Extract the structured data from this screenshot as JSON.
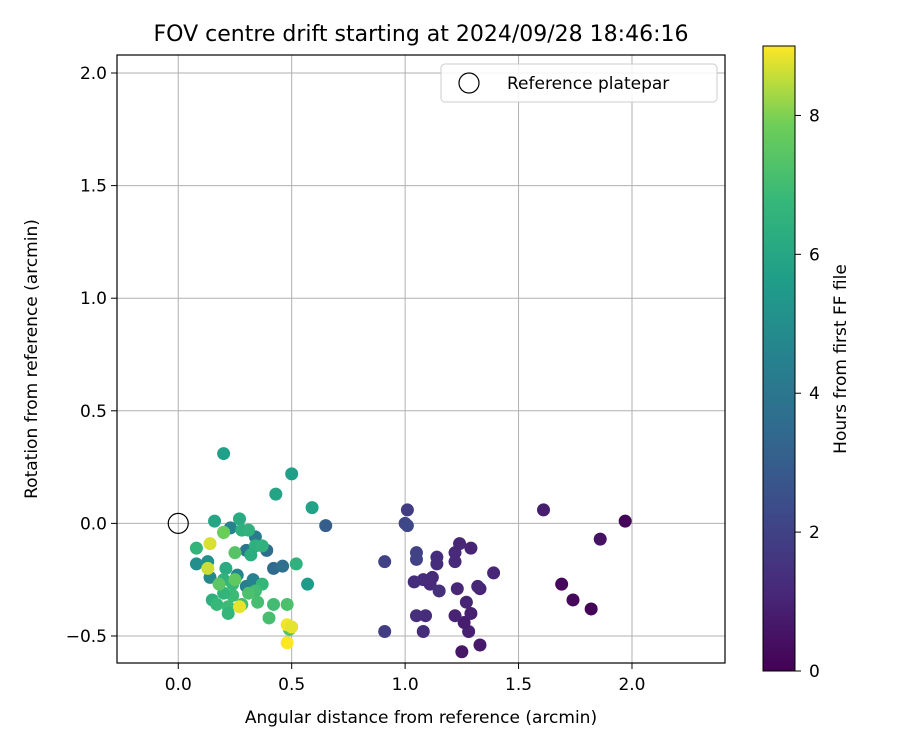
{
  "chart_data": {
    "type": "scatter",
    "title": "FOV centre drift starting at 2024/09/28 18:46:16",
    "xlabel": "Angular distance from reference (arcmin)",
    "ylabel": "Rotation from reference (arcmin)",
    "xlim": [
      -0.27,
      2.41
    ],
    "ylim": [
      -0.62,
      2.08
    ],
    "x_ticks": [
      0.0,
      0.5,
      1.0,
      1.5,
      2.0
    ],
    "x_tick_labels": [
      "0.0",
      "0.5",
      "1.0",
      "1.5",
      "2.0"
    ],
    "y_ticks": [
      -0.5,
      0.0,
      0.5,
      1.0,
      1.5,
      2.0
    ],
    "y_tick_labels": [
      "−0.5",
      "0.0",
      "0.5",
      "1.0",
      "1.5",
      "2.0"
    ],
    "grid": true,
    "legend": {
      "position": "top-right",
      "entries": [
        "Reference platepar"
      ]
    },
    "reference_point": {
      "x": 0.0,
      "y": 0.0
    },
    "colorbar": {
      "label": "Hours from first FF file",
      "colormap": "viridis",
      "range": [
        0,
        9
      ],
      "ticks": [
        0,
        2,
        4,
        6,
        8
      ],
      "tick_labels": [
        "0",
        "2",
        "4",
        "6",
        "8"
      ]
    },
    "points": [
      {
        "x": 1.97,
        "y": 0.01,
        "c": 0.1
      },
      {
        "x": 1.82,
        "y": -0.38,
        "c": 0.1
      },
      {
        "x": 1.74,
        "y": -0.34,
        "c": 0.2
      },
      {
        "x": 1.69,
        "y": -0.27,
        "c": 0.2
      },
      {
        "x": 1.86,
        "y": -0.07,
        "c": 0.5
      },
      {
        "x": 1.61,
        "y": 0.06,
        "c": 0.8
      },
      {
        "x": 1.25,
        "y": -0.57,
        "c": 0.6
      },
      {
        "x": 1.33,
        "y": -0.54,
        "c": 0.7
      },
      {
        "x": 1.28,
        "y": -0.48,
        "c": 0.9
      },
      {
        "x": 1.26,
        "y": -0.44,
        "c": 0.8
      },
      {
        "x": 1.22,
        "y": -0.41,
        "c": 1.0
      },
      {
        "x": 1.29,
        "y": -0.4,
        "c": 0.9
      },
      {
        "x": 1.27,
        "y": -0.35,
        "c": 1.0
      },
      {
        "x": 1.33,
        "y": -0.29,
        "c": 1.0
      },
      {
        "x": 1.32,
        "y": -0.28,
        "c": 1.1
      },
      {
        "x": 1.23,
        "y": -0.29,
        "c": 1.1
      },
      {
        "x": 1.39,
        "y": -0.22,
        "c": 1.1
      },
      {
        "x": 1.22,
        "y": -0.13,
        "c": 1.2
      },
      {
        "x": 1.29,
        "y": -0.11,
        "c": 1.0
      },
      {
        "x": 1.24,
        "y": -0.09,
        "c": 1.1
      },
      {
        "x": 1.22,
        "y": -0.17,
        "c": 1.2
      },
      {
        "x": 1.14,
        "y": -0.15,
        "c": 1.3
      },
      {
        "x": 1.14,
        "y": -0.18,
        "c": 1.3
      },
      {
        "x": 1.12,
        "y": -0.24,
        "c": 1.2
      },
      {
        "x": 1.08,
        "y": -0.25,
        "c": 1.3
      },
      {
        "x": 1.04,
        "y": -0.26,
        "c": 1.3
      },
      {
        "x": 1.11,
        "y": -0.27,
        "c": 1.2
      },
      {
        "x": 1.15,
        "y": -0.3,
        "c": 1.4
      },
      {
        "x": 1.05,
        "y": -0.41,
        "c": 1.4
      },
      {
        "x": 1.09,
        "y": -0.41,
        "c": 1.3
      },
      {
        "x": 1.08,
        "y": -0.48,
        "c": 1.3
      },
      {
        "x": 0.91,
        "y": -0.48,
        "c": 1.8
      },
      {
        "x": 0.91,
        "y": -0.17,
        "c": 2.0
      },
      {
        "x": 1.05,
        "y": -0.16,
        "c": 2.0
      },
      {
        "x": 1.05,
        "y": -0.13,
        "c": 2.0
      },
      {
        "x": 1.0,
        "y": 0.0,
        "c": 2.1
      },
      {
        "x": 1.01,
        "y": -0.01,
        "c": 2.2
      },
      {
        "x": 1.01,
        "y": 0.06,
        "c": 1.8
      },
      {
        "x": 0.65,
        "y": -0.01,
        "c": 3.0
      },
      {
        "x": 0.42,
        "y": -0.2,
        "c": 3.5
      },
      {
        "x": 0.46,
        "y": -0.19,
        "c": 3.7
      },
      {
        "x": 0.39,
        "y": -0.12,
        "c": 3.6
      },
      {
        "x": 0.3,
        "y": -0.12,
        "c": 4.0
      },
      {
        "x": 0.34,
        "y": -0.06,
        "c": 4.2
      },
      {
        "x": 0.23,
        "y": -0.02,
        "c": 4.5
      },
      {
        "x": 0.3,
        "y": -0.28,
        "c": 4.3
      },
      {
        "x": 0.33,
        "y": -0.25,
        "c": 4.5
      },
      {
        "x": 0.26,
        "y": -0.23,
        "c": 4.7
      },
      {
        "x": 0.14,
        "y": -0.24,
        "c": 4.8
      },
      {
        "x": 0.08,
        "y": -0.18,
        "c": 5.0
      },
      {
        "x": 0.13,
        "y": -0.17,
        "c": 5.1
      },
      {
        "x": 0.57,
        "y": -0.27,
        "c": 5.5
      },
      {
        "x": 0.59,
        "y": 0.07,
        "c": 5.8
      },
      {
        "x": 0.5,
        "y": 0.22,
        "c": 5.7
      },
      {
        "x": 0.43,
        "y": 0.13,
        "c": 5.9
      },
      {
        "x": 0.2,
        "y": 0.31,
        "c": 5.7
      },
      {
        "x": 0.16,
        "y": 0.01,
        "c": 6.0
      },
      {
        "x": 0.2,
        "y": -0.04,
        "c": 6.1
      },
      {
        "x": 0.27,
        "y": 0.02,
        "c": 6.2
      },
      {
        "x": 0.28,
        "y": -0.03,
        "c": 6.4
      },
      {
        "x": 0.31,
        "y": -0.03,
        "c": 6.5
      },
      {
        "x": 0.34,
        "y": -0.1,
        "c": 6.4
      },
      {
        "x": 0.37,
        "y": -0.1,
        "c": 6.5
      },
      {
        "x": 0.32,
        "y": -0.14,
        "c": 6.3
      },
      {
        "x": 0.52,
        "y": -0.18,
        "c": 6.5
      },
      {
        "x": 0.08,
        "y": -0.11,
        "c": 6.6
      },
      {
        "x": 0.21,
        "y": -0.2,
        "c": 6.2
      },
      {
        "x": 0.2,
        "y": -0.25,
        "c": 6.5
      },
      {
        "x": 0.24,
        "y": -0.27,
        "c": 6.8
      },
      {
        "x": 0.37,
        "y": -0.27,
        "c": 6.7
      },
      {
        "x": 0.34,
        "y": -0.3,
        "c": 7.0
      },
      {
        "x": 0.31,
        "y": -0.31,
        "c": 7.2
      },
      {
        "x": 0.24,
        "y": -0.32,
        "c": 6.9
      },
      {
        "x": 0.2,
        "y": -0.31,
        "c": 6.6
      },
      {
        "x": 0.15,
        "y": -0.34,
        "c": 6.4
      },
      {
        "x": 0.17,
        "y": -0.36,
        "c": 6.8
      },
      {
        "x": 0.22,
        "y": -0.37,
        "c": 6.9
      },
      {
        "x": 0.22,
        "y": -0.4,
        "c": 6.7
      },
      {
        "x": 0.28,
        "y": -0.36,
        "c": 7.0
      },
      {
        "x": 0.35,
        "y": -0.35,
        "c": 7.1
      },
      {
        "x": 0.42,
        "y": -0.36,
        "c": 7.0
      },
      {
        "x": 0.48,
        "y": -0.36,
        "c": 7.2
      },
      {
        "x": 0.4,
        "y": -0.42,
        "c": 7.1
      },
      {
        "x": 0.49,
        "y": -0.47,
        "c": 7.3
      },
      {
        "x": 0.25,
        "y": -0.13,
        "c": 7.4
      },
      {
        "x": 0.2,
        "y": -0.04,
        "c": 7.8
      },
      {
        "x": 0.18,
        "y": -0.27,
        "c": 7.5
      },
      {
        "x": 0.25,
        "y": -0.25,
        "c": 7.6
      },
      {
        "x": 0.13,
        "y": -0.2,
        "c": 8.6
      },
      {
        "x": 0.14,
        "y": -0.09,
        "c": 8.7
      },
      {
        "x": 0.27,
        "y": -0.37,
        "c": 8.8
      },
      {
        "x": 0.48,
        "y": -0.45,
        "c": 8.9
      },
      {
        "x": 0.5,
        "y": -0.46,
        "c": 8.8
      },
      {
        "x": 0.48,
        "y": -0.53,
        "c": 9.0
      }
    ]
  }
}
